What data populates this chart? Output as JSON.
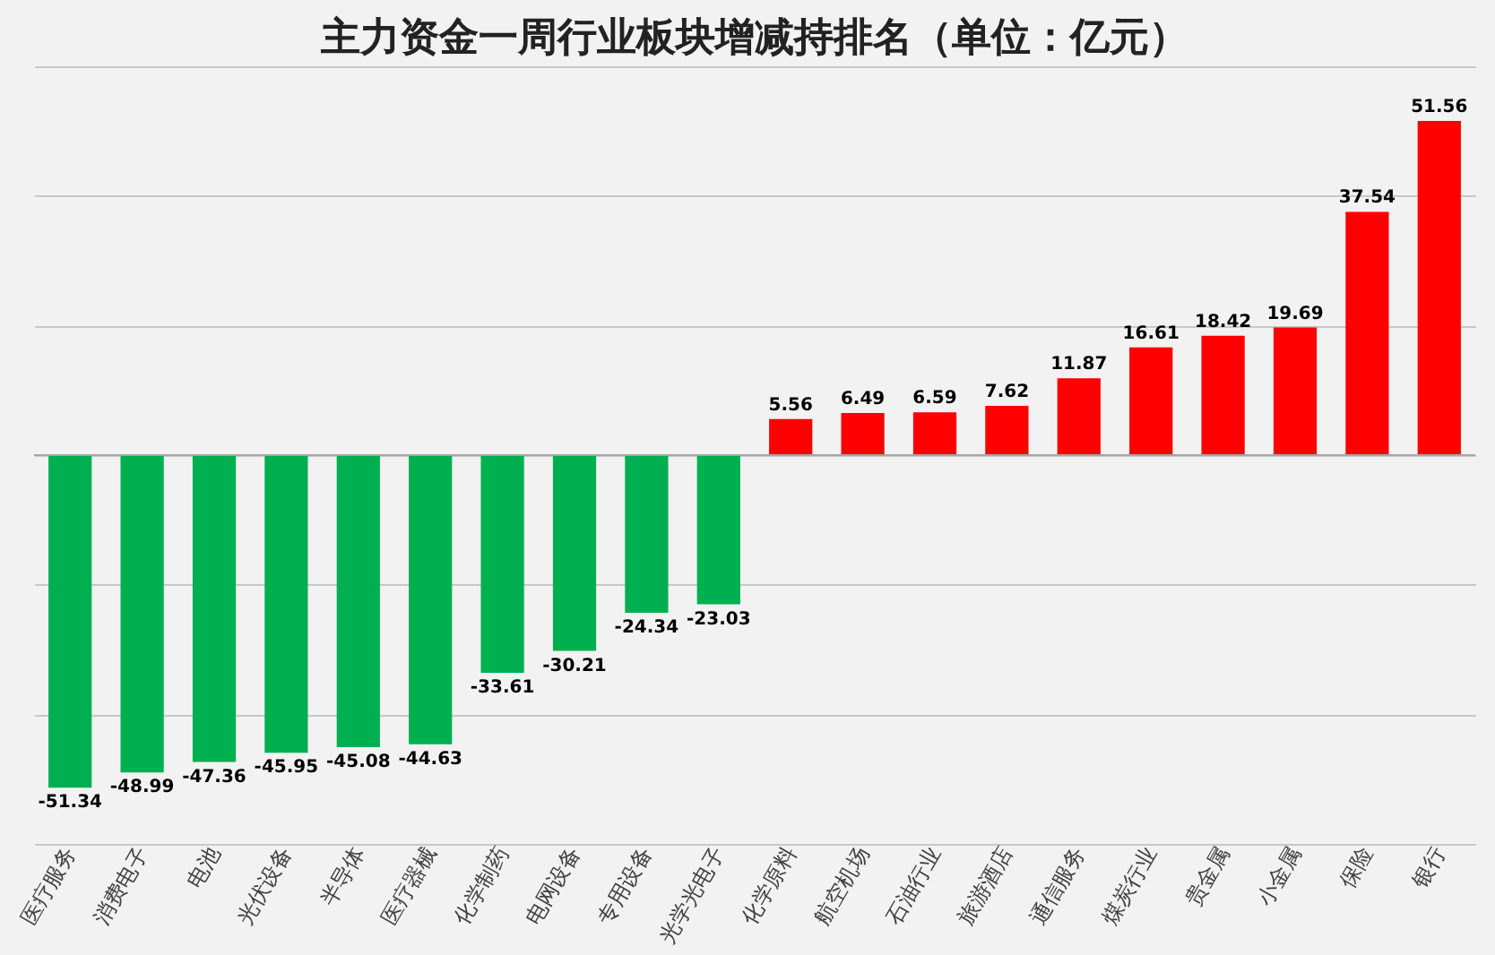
{
  "chart_data": {
    "type": "bar",
    "title": "主力资金一周行业板块增减持排名（单位：亿元）",
    "categories": [
      "医疗服务",
      "消费电子",
      "电池",
      "光伏设备",
      "半导体",
      "医疗器械",
      "化学制药",
      "电网设备",
      "专用设备",
      "光学光电子",
      "化学原料",
      "航空机场",
      "石油行业",
      "旅游酒店",
      "通信服务",
      "煤炭行业",
      "贵金属",
      "小金属",
      "保险",
      "银行"
    ],
    "values": [
      -51.34,
      -48.99,
      -47.36,
      -45.95,
      -45.08,
      -44.63,
      -33.61,
      -30.21,
      -24.34,
      -23.03,
      5.56,
      6.49,
      6.59,
      7.62,
      11.87,
      16.61,
      18.42,
      19.69,
      37.54,
      51.56
    ],
    "colors": [
      "#00b050",
      "#00b050",
      "#00b050",
      "#00b050",
      "#00b050",
      "#00b050",
      "#00b050",
      "#00b050",
      "#00b050",
      "#00b050",
      "#ff0000",
      "#ff0000",
      "#ff0000",
      "#ff0000",
      "#ff0000",
      "#ff0000",
      "#ff0000",
      "#ff0000",
      "#ff0000",
      "#ff0000"
    ],
    "ylim": [
      -60,
      60
    ],
    "yticks": [
      {
        "value": -60,
        "label": null
      },
      {
        "value": -40,
        "label": null
      },
      {
        "value": -20,
        "label": null
      },
      {
        "value": 0,
        "label": null
      },
      {
        "value": 20,
        "label": null
      },
      {
        "value": 40,
        "label": null
      },
      {
        "value": 60,
        "label": null
      }
    ],
    "grid": "y",
    "tick_labels": "x",
    "data_labels": true
  }
}
